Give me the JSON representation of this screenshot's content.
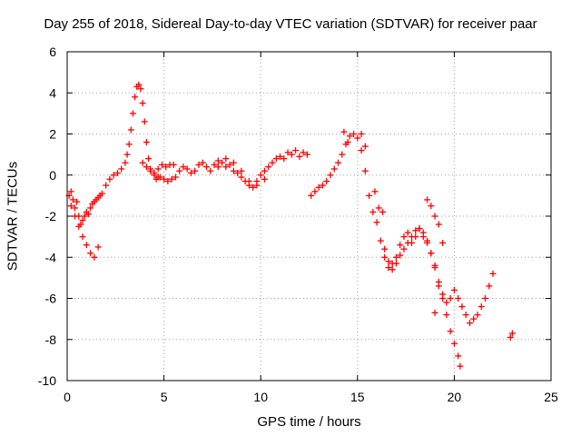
{
  "chart_data": {
    "type": "scatter",
    "title": "Day 255 of 2018, Sidereal Day-to-day VTEC variation (SDTVAR) for receiver paar",
    "xlabel": "GPS time / hours",
    "ylabel": "SDTVAR / TECUs",
    "xlim": [
      0,
      25
    ],
    "ylim": [
      -10,
      6
    ],
    "xticks": [
      "0",
      "5",
      "10",
      "15",
      "20",
      "25"
    ],
    "yticks": [
      "-10",
      "-8",
      "-6",
      "-4",
      "-2",
      "0",
      "2",
      "4",
      "6"
    ],
    "grid": true,
    "marker": "plus",
    "marker_color": "#ff0000",
    "series": [
      {
        "x": [
          0.1,
          0.2,
          0.3,
          0.4,
          0.5,
          0.6,
          0.7,
          0.8,
          0.9,
          1.0,
          1.1,
          1.2,
          1.3,
          1.4,
          1.5,
          1.6,
          1.7,
          0.2,
          0.4,
          0.6,
          0.8,
          1.0,
          1.2,
          1.4,
          1.6,
          1.8,
          2.0,
          2.2,
          2.4,
          2.6,
          2.8,
          3.0,
          3.1,
          3.2,
          3.3,
          3.4,
          3.5,
          3.6,
          3.7,
          3.8,
          3.9,
          4.0,
          4.1,
          4.2,
          4.3,
          4.5,
          4.7,
          3.9,
          4.1,
          4.3,
          4.5,
          4.7,
          4.9,
          5.1,
          5.3,
          5.5,
          4.6,
          4.8,
          5.0,
          5.2,
          5.4,
          5.6,
          5.8,
          6.0,
          6.2,
          6.4,
          6.6,
          6.8,
          7.0,
          7.2,
          7.4,
          7.6,
          7.8,
          8.0,
          8.2,
          8.4,
          8.6,
          8.8,
          9.0,
          9.2,
          9.4,
          9.6,
          9.8,
          10.0,
          10.2,
          10.4,
          10.6,
          10.8,
          11.0,
          11.2,
          11.4,
          11.6,
          11.8,
          12.0,
          12.2,
          12.4,
          7.8,
          8.2,
          8.6,
          9.0,
          9.4,
          9.8,
          10.2,
          12.6,
          12.8,
          13.0,
          13.2,
          13.4,
          13.6,
          13.8,
          14.0,
          14.2,
          14.4,
          14.6,
          14.8,
          15.0,
          15.2,
          15.4,
          15.6,
          15.8,
          16.0,
          16.2,
          16.4,
          16.6,
          16.8,
          17.0,
          17.2,
          17.4,
          17.6,
          17.8,
          18.0,
          18.2,
          18.4,
          18.6,
          18.8,
          19.0,
          19.2,
          19.4,
          19.6,
          19.8,
          20.0,
          20.2,
          20.4,
          20.6,
          20.8,
          21.0,
          21.2,
          21.4,
          21.6,
          21.8,
          22.0,
          14.3,
          14.5,
          15.2,
          15.4,
          15.9,
          16.1,
          16.3,
          16.4,
          16.6,
          16.8,
          17.0,
          17.2,
          17.4,
          17.6,
          17.8,
          18.0,
          18.2,
          18.4,
          18.6,
          18.8,
          19.0,
          19.2,
          19.4,
          19.6,
          19.8,
          20.0,
          20.2,
          20.3,
          18.6,
          18.8,
          19.0,
          19.2,
          19.4,
          19.0,
          22.9,
          23.0
        ],
        "y": [
          -1.0,
          -0.8,
          -1.2,
          -1.6,
          -1.3,
          -2.0,
          -2.4,
          -2.2,
          -2.0,
          -1.8,
          -1.9,
          -1.6,
          -1.4,
          -1.3,
          -1.2,
          -1.1,
          -1.0,
          -1.5,
          -2.0,
          -2.5,
          -3.0,
          -3.4,
          -3.8,
          -4.0,
          -3.5,
          -0.9,
          -0.5,
          -0.2,
          0.0,
          0.1,
          0.3,
          0.6,
          1.0,
          1.5,
          2.2,
          3.0,
          3.8,
          4.3,
          4.4,
          4.2,
          3.5,
          2.6,
          1.6,
          0.8,
          0.3,
          0.0,
          -0.1,
          0.6,
          0.4,
          0.2,
          0.1,
          0.3,
          0.5,
          0.4,
          0.5,
          0.5,
          -0.2,
          -0.1,
          -0.2,
          -0.3,
          -0.2,
          -0.1,
          0.2,
          0.4,
          0.3,
          0.1,
          0.2,
          0.5,
          0.6,
          0.4,
          0.2,
          0.5,
          0.7,
          0.6,
          0.4,
          0.5,
          0.2,
          0.1,
          -0.1,
          -0.3,
          -0.5,
          -0.6,
          -0.3,
          0.0,
          0.2,
          0.4,
          0.6,
          0.8,
          0.9,
          0.8,
          1.1,
          1.0,
          1.2,
          0.9,
          1.1,
          1.0,
          0.4,
          0.8,
          0.6,
          0.2,
          -0.3,
          -0.5,
          -0.2,
          -1.0,
          -0.8,
          -0.6,
          -0.5,
          -0.3,
          0.0,
          0.3,
          0.6,
          1.0,
          1.5,
          1.9,
          2.0,
          1.8,
          1.2,
          0.2,
          -1.0,
          -1.8,
          -2.3,
          -3.2,
          -4.0,
          -4.5,
          -4.3,
          -4.0,
          -3.4,
          -3.0,
          -2.8,
          -3.3,
          -3.0,
          -2.6,
          -3.0,
          -3.3,
          -3.8,
          -4.5,
          -5.4,
          -5.8,
          -6.2,
          -6.0,
          -5.6,
          -6.0,
          -6.4,
          -6.8,
          -7.2,
          -7.0,
          -6.8,
          -6.4,
          -6.0,
          -5.4,
          -4.8,
          2.1,
          1.6,
          2.0,
          1.4,
          -0.8,
          -1.6,
          -1.8,
          -3.6,
          -4.2,
          -4.6,
          -4.3,
          -3.9,
          -3.6,
          -3.3,
          -3.0,
          -2.7,
          -2.6,
          -2.8,
          -3.2,
          -3.8,
          -4.4,
          -5.2,
          -6.0,
          -6.8,
          -7.6,
          -8.2,
          -8.8,
          -9.3,
          -1.2,
          -1.5,
          -2.0,
          -2.4,
          -3.3,
          -6.7,
          -7.9,
          -7.7
        ]
      }
    ]
  }
}
